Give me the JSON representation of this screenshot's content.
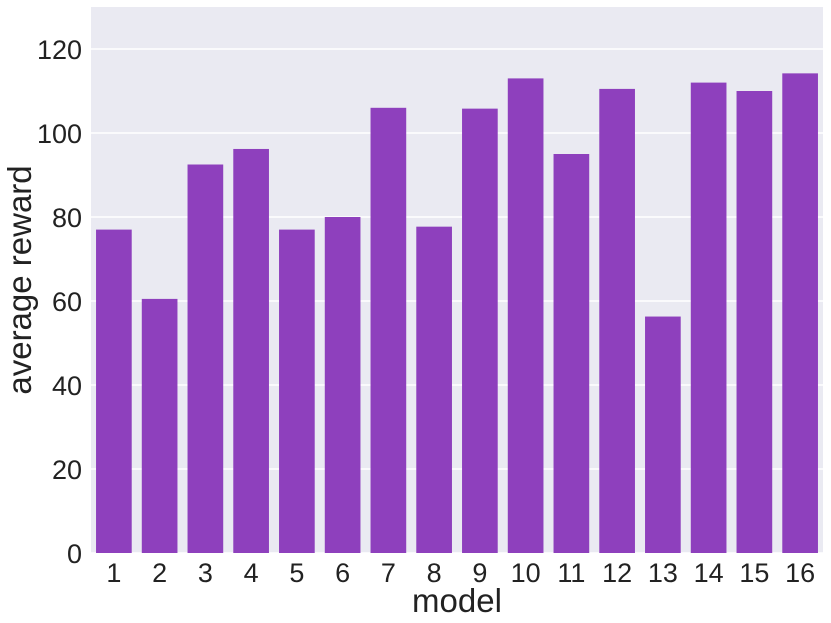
{
  "chart_data": {
    "type": "bar",
    "title": "",
    "xlabel": "model",
    "ylabel": "average reward",
    "categories": [
      "1",
      "2",
      "3",
      "4",
      "5",
      "6",
      "7",
      "8",
      "9",
      "10",
      "11",
      "12",
      "13",
      "14",
      "15",
      "16"
    ],
    "values": [
      77,
      60.5,
      92.5,
      96.2,
      77,
      80,
      106,
      77.7,
      105.8,
      113,
      95,
      110.5,
      56.3,
      112,
      110,
      114.2
    ],
    "ylim": [
      0,
      130
    ],
    "yticks": [
      0,
      20,
      40,
      60,
      80,
      100,
      120
    ],
    "grid": true,
    "colors": {
      "bar": "#8e40bd",
      "plot_background": "#eaeaf2",
      "grid": "#ffffff"
    }
  }
}
